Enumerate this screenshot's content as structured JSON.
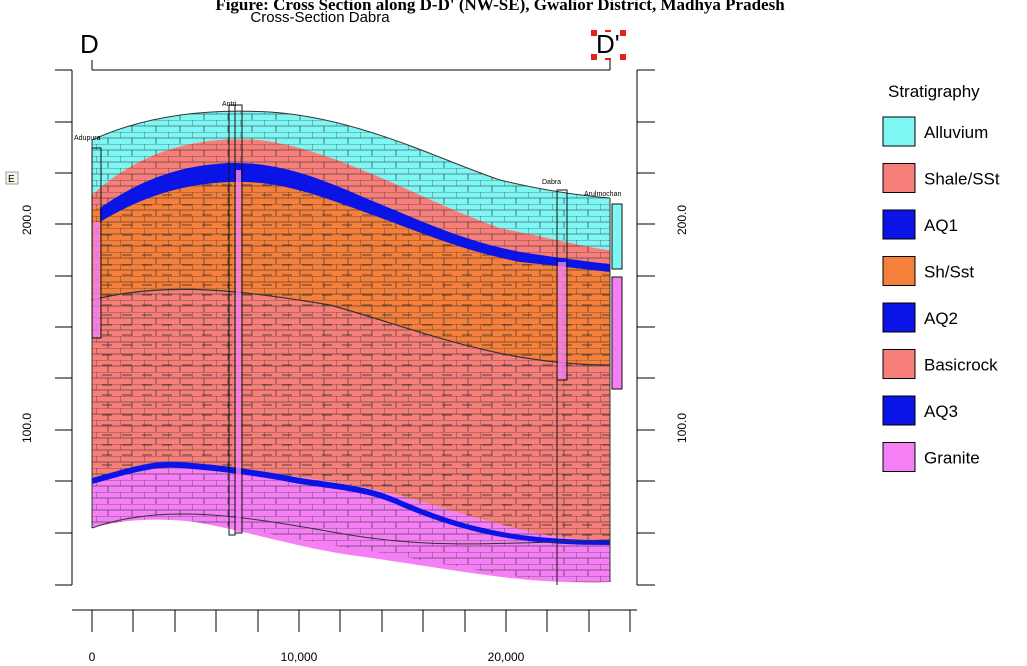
{
  "caption_top": "Figure: Cross Section along D-D' (NW-SE), Gwalior District, Madhya Pradesh",
  "title": "Cross-Section Dabra",
  "section_start": "D",
  "section_end": "D'",
  "side_marker": "E",
  "y_axis": {
    "labels": [
      {
        "value": 200,
        "text": "200.0"
      },
      {
        "value": 100,
        "text": "100.0"
      }
    ]
  },
  "x_axis": {
    "labels": [
      {
        "value": 0,
        "text": "0"
      },
      {
        "value": 10000,
        "text": "10,000"
      },
      {
        "value": 20000,
        "text": "20,000"
      }
    ]
  },
  "wells": [
    {
      "name": "Adupura",
      "distance": 0
    },
    {
      "name": "Antri",
      "distance": 7000
    },
    {
      "name": "Dabra",
      "distance": 22500
    },
    {
      "name": "Arulmochan",
      "distance": 25000
    }
  ],
  "legend": {
    "title": "Stratigraphy",
    "items": [
      {
        "label": "Alluvium",
        "color": "#7ef7f4"
      },
      {
        "label": "Shale/SSt",
        "color": "#f67f7a"
      },
      {
        "label": "AQ1",
        "color": "#0a14e6"
      },
      {
        "label": "Sh/Sst",
        "color": "#f5803c"
      },
      {
        "label": "AQ2",
        "color": "#0a14e6"
      },
      {
        "label": "Basicrock",
        "color": "#f67f7a"
      },
      {
        "label": "AQ3",
        "color": "#0a14e6"
      },
      {
        "label": "Granite",
        "color": "#f57ff5"
      }
    ]
  }
}
